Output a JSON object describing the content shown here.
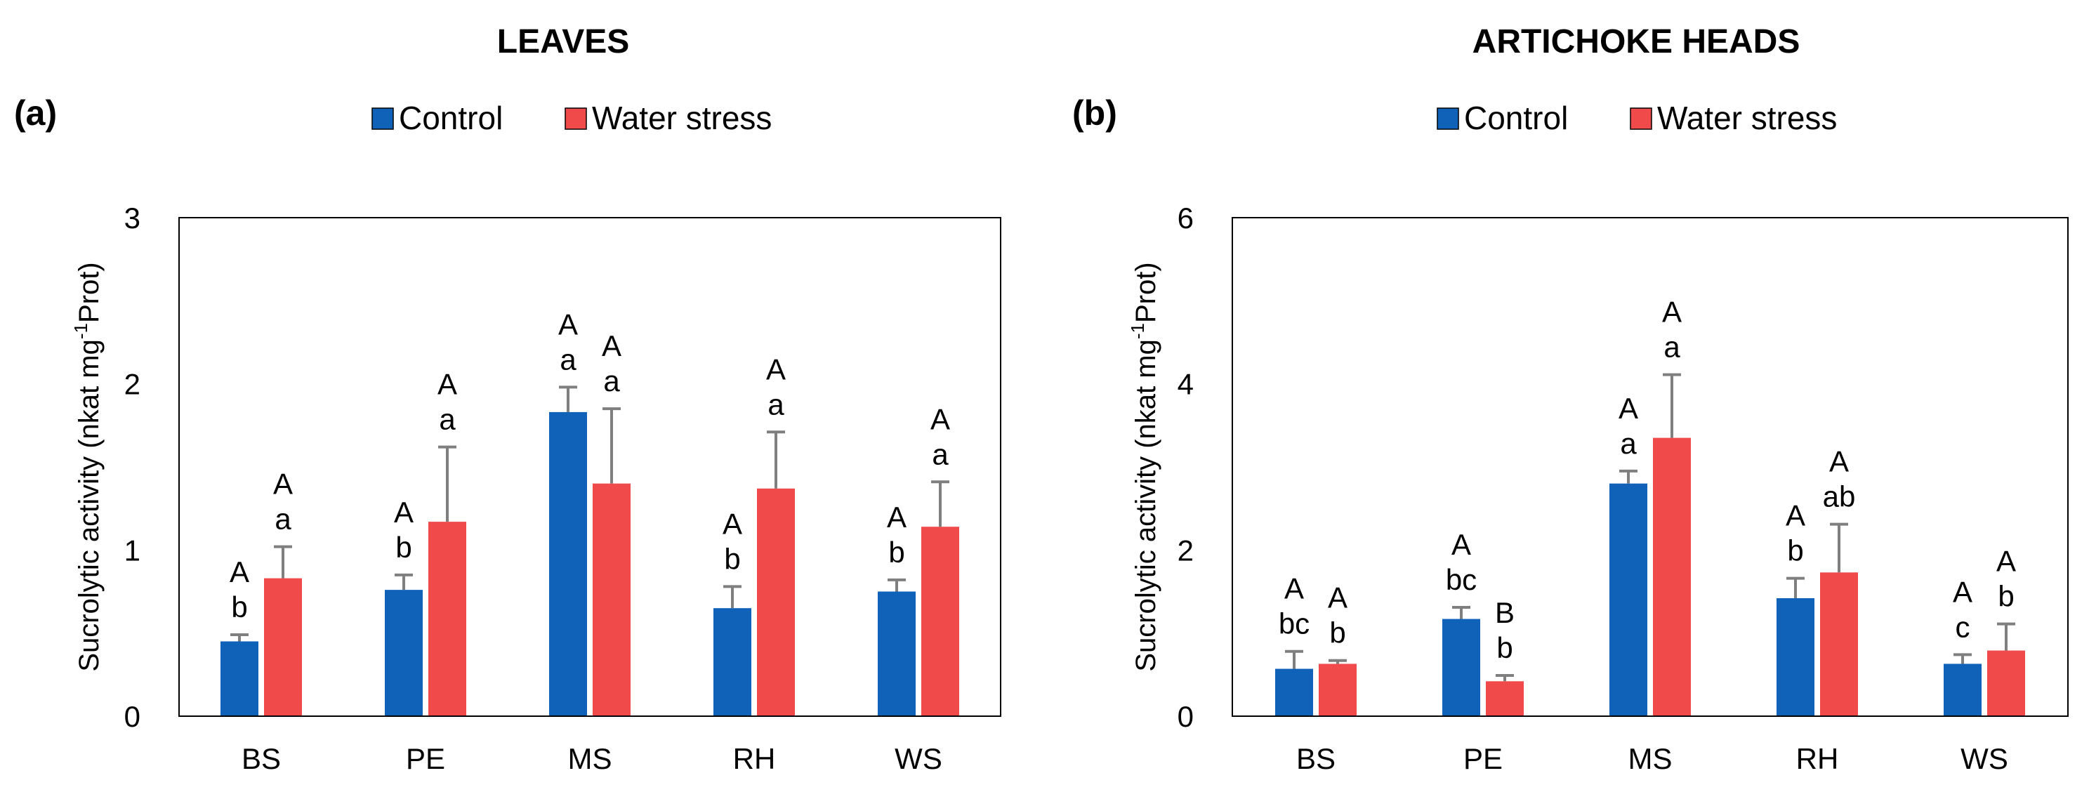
{
  "colors": {
    "control": "#0f62b8",
    "stress": "#f04a4a",
    "error": "#7f7f7f",
    "axis": "#000000"
  },
  "chart_data": [
    {
      "type": "bar",
      "title": "LEAVES",
      "panel": "(a)",
      "ylabel_main": "Sucrolytic activity (nkat mg",
      "ylabel_sup": "-1",
      "ylabel_end": "Prot)",
      "ylim": [
        0,
        3
      ],
      "yticks": [
        "0",
        "1",
        "2",
        "3"
      ],
      "categories": [
        "BS",
        "PE",
        "MS",
        "RH",
        "WS"
      ],
      "series": [
        {
          "name": "Control",
          "values": [
            0.45,
            0.76,
            1.83,
            0.65,
            0.75
          ],
          "errors": [
            0.04,
            0.09,
            0.15,
            0.13,
            0.07
          ],
          "letters": [
            [
              "A",
              "b"
            ],
            [
              "A",
              "b"
            ],
            [
              "A",
              "a"
            ],
            [
              "A",
              "b"
            ],
            [
              "A",
              "b"
            ]
          ]
        },
        {
          "name": "Water stress",
          "values": [
            0.83,
            1.17,
            1.4,
            1.37,
            1.14
          ],
          "errors": [
            0.19,
            0.45,
            0.45,
            0.34,
            0.27
          ],
          "letters": [
            [
              "A",
              "a"
            ],
            [
              "A",
              "a"
            ],
            [
              "A",
              "a"
            ],
            [
              "A",
              "a"
            ],
            [
              "A",
              "a"
            ]
          ]
        }
      ]
    },
    {
      "type": "bar",
      "title": "ARTICHOKE HEADS",
      "panel": "(b)",
      "ylabel_main": "Sucrolytic activity (nkat mg",
      "ylabel_sup": "-1",
      "ylabel_end": "Prot)",
      "ylim": [
        0,
        6
      ],
      "yticks": [
        "0",
        "2",
        "4",
        "6"
      ],
      "categories": [
        "BS",
        "PE",
        "MS",
        "RH",
        "WS"
      ],
      "series": [
        {
          "name": "Control",
          "values": [
            0.57,
            1.17,
            2.8,
            1.42,
            0.63
          ],
          "errors": [
            0.21,
            0.14,
            0.15,
            0.24,
            0.11
          ],
          "letters": [
            [
              "A",
              "bc"
            ],
            [
              "A",
              "bc"
            ],
            [
              "A",
              "a"
            ],
            [
              "A",
              "b"
            ],
            [
              "A",
              "c"
            ]
          ]
        },
        {
          "name": "Water stress",
          "values": [
            0.63,
            0.42,
            3.35,
            1.73,
            0.79
          ],
          "errors": [
            0.04,
            0.07,
            0.76,
            0.58,
            0.32
          ],
          "letters": [
            [
              "A",
              "b"
            ],
            [
              "B",
              "b"
            ],
            [
              "A",
              "a"
            ],
            [
              "A",
              "ab"
            ],
            [
              "A",
              "b"
            ]
          ]
        }
      ]
    }
  ]
}
